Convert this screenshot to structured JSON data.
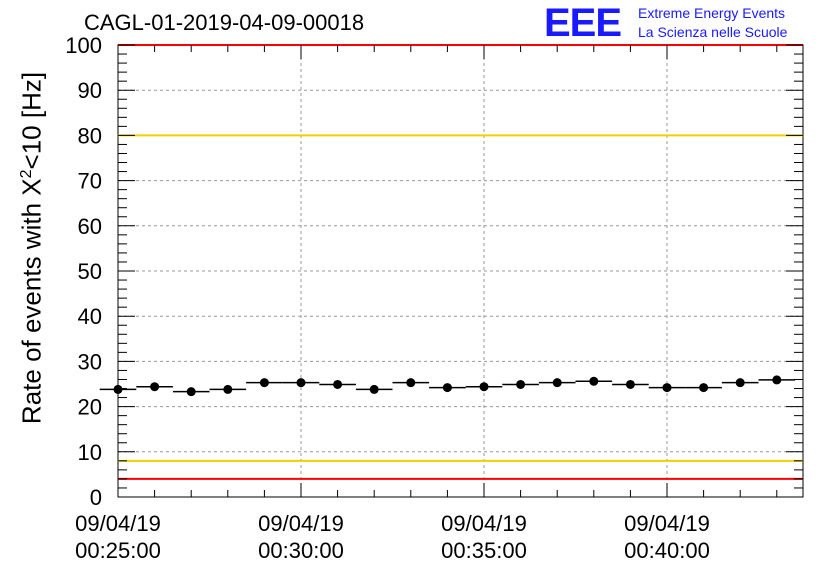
{
  "chart_data": {
    "type": "scatter",
    "title": "CAGL-01-2019-04-09-00018",
    "ylabel_parts": {
      "before": "Rate of events with X",
      "sup": "2",
      "after": "<10 [Hz]"
    },
    "ylim": [
      0,
      100
    ],
    "y_ticks": [
      0,
      10,
      20,
      30,
      40,
      50,
      60,
      70,
      80,
      90,
      100
    ],
    "x_ticks": [
      {
        "date": "09/04/19",
        "time": "00:25:00"
      },
      {
        "date": "09/04/19",
        "time": "00:30:00"
      },
      {
        "date": "09/04/19",
        "time": "00:35:00"
      },
      {
        "date": "09/04/19",
        "time": "00:40:00"
      }
    ],
    "grid": true,
    "reference_lines": [
      {
        "value": 100,
        "color": "#ff0000"
      },
      {
        "value": 80,
        "color": "#f2d000"
      },
      {
        "value": 8,
        "color": "#f2d000"
      },
      {
        "value": 4,
        "color": "#ff0000"
      }
    ],
    "series": [
      {
        "x_times": [
          "00:25:00",
          "00:26:00",
          "00:27:00",
          "00:28:00",
          "00:29:00",
          "00:30:00",
          "00:31:00",
          "00:32:00",
          "00:33:00",
          "00:34:00",
          "00:35:00",
          "00:36:00",
          "00:37:00",
          "00:38:00",
          "00:39:00",
          "00:40:00",
          "00:41:00",
          "00:42:00",
          "00:43:00"
        ],
        "values": [
          23.8,
          24.4,
          23.3,
          23.8,
          25.3,
          25.3,
          24.9,
          23.8,
          25.3,
          24.2,
          24.4,
          24.9,
          25.3,
          25.6,
          24.9,
          24.2,
          24.2,
          25.3,
          25.9
        ]
      }
    ]
  },
  "logo": {
    "mark": "EEE",
    "line1": "Extreme Energy Events",
    "line2": "La Scienza nelle Scuole"
  }
}
